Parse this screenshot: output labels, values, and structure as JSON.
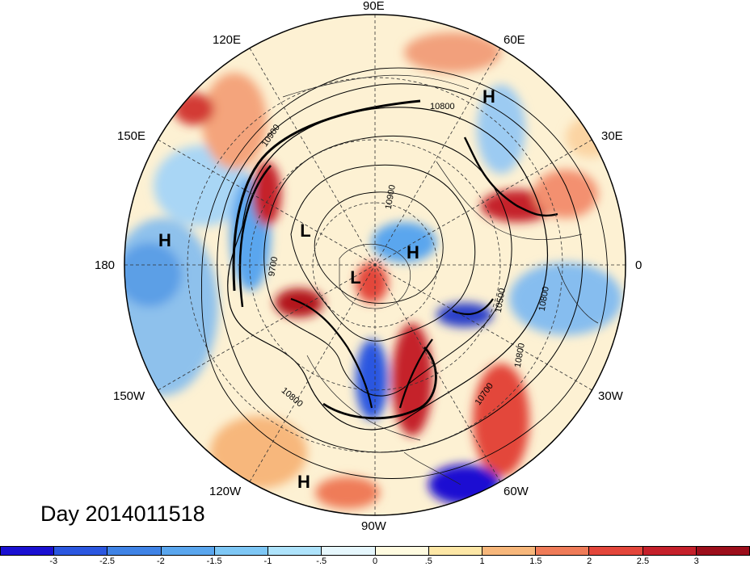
{
  "title": "Day 2014011518",
  "lon_labels": [
    "90E",
    "60E",
    "30E",
    "0",
    "30W",
    "60W",
    "90W",
    "120W",
    "150W",
    "180",
    "150E",
    "120E"
  ],
  "pressure_centers": [
    "H",
    "H",
    "H",
    "H",
    "L",
    "L"
  ],
  "contour_labels": [
    "10800",
    "10900",
    "10900",
    "9700",
    "10500",
    "10800",
    "10700",
    "10800",
    "10800"
  ],
  "colorbar": {
    "ticks": [
      "-3",
      "-2.5",
      "-2",
      "-1.5",
      "-1",
      "-.5",
      "0",
      ".5",
      "1",
      "1.5",
      "2",
      "2.5",
      "3"
    ],
    "colors": [
      "#1a10d2",
      "#2b57e0",
      "#3f83e6",
      "#5aa6ee",
      "#7ec7f5",
      "#aee3fb",
      "#e6f7fd",
      "#fffbe0",
      "#fde7a6",
      "#f7b77b",
      "#ef7b58",
      "#e3463b",
      "#c5202a",
      "#9c0e1b"
    ]
  },
  "colors": {
    "ocean_blue": "#9cc9ec",
    "deep_blue": "#2a5fd9",
    "warm_red": "#e5483c",
    "dark_red": "#b3141f",
    "pale": "#fff5dc"
  }
}
